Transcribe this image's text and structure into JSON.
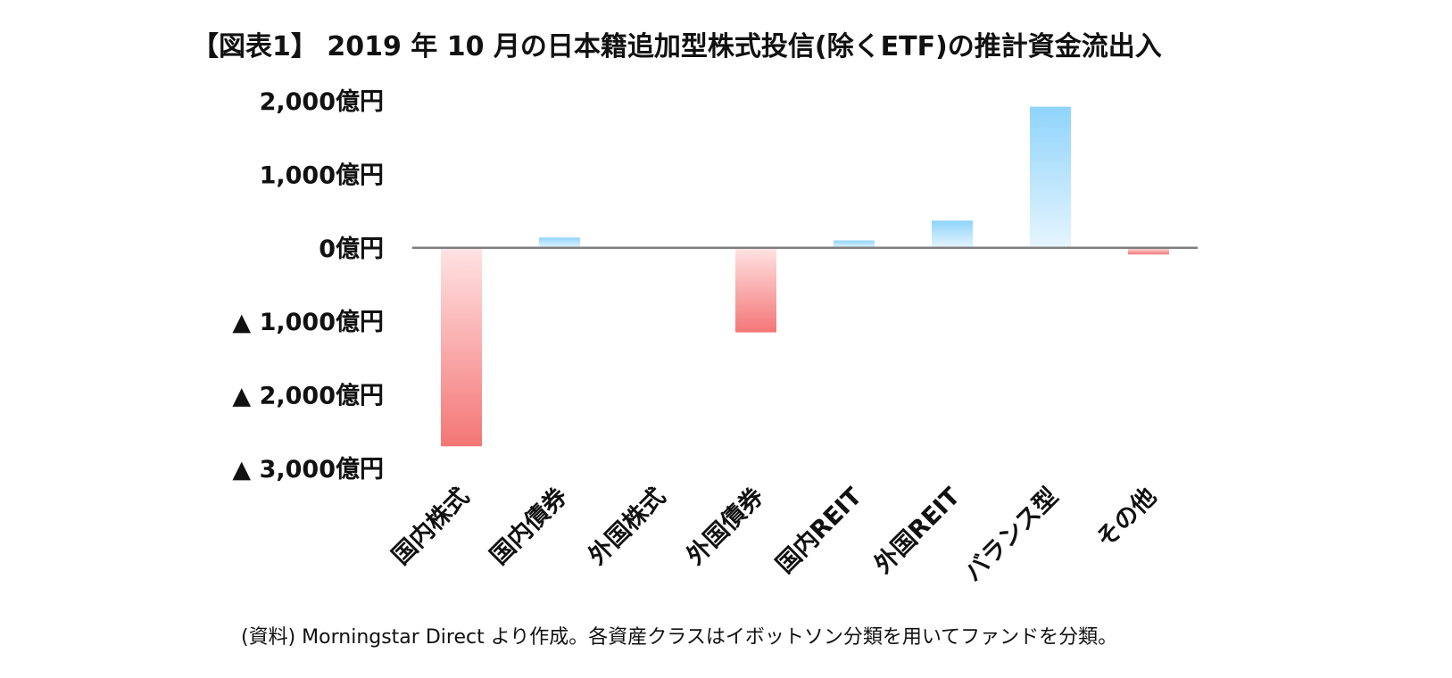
{
  "title": "【図表1】 2019 年 10 月の日本籍追加型株式投信(除くETF)の推計資金流出入",
  "source": "(資料) Morningstar Direct より作成。各資産クラスはイボットソン分類を用いてファンドを分類。",
  "colors": {
    "positive_top": "#8fd4fb",
    "positive_bottom": "#e6f5fe",
    "negative_top": "#ffe3e3",
    "negative_bottom": "#f47676",
    "zero_line": "#7f7f7f"
  },
  "chart_data": {
    "type": "bar",
    "categories": [
      "国内株式",
      "国内債券",
      "外国株式",
      "外国債券",
      "国内REIT",
      "外国REIT",
      "バランス型",
      "その他"
    ],
    "values": [
      -2700,
      140,
      0,
      -1150,
      100,
      370,
      1920,
      -90
    ],
    "ylim": [
      -3000,
      2000
    ],
    "yticks": [
      2000,
      1000,
      0,
      -1000,
      -2000,
      -3000
    ],
    "ytick_labels": [
      "2,000億円",
      "1,000億円",
      "0億円",
      "▲ 1,000億円",
      "▲ 2,000億円",
      "▲ 3,000億円"
    ],
    "grid": false,
    "legend": false
  }
}
